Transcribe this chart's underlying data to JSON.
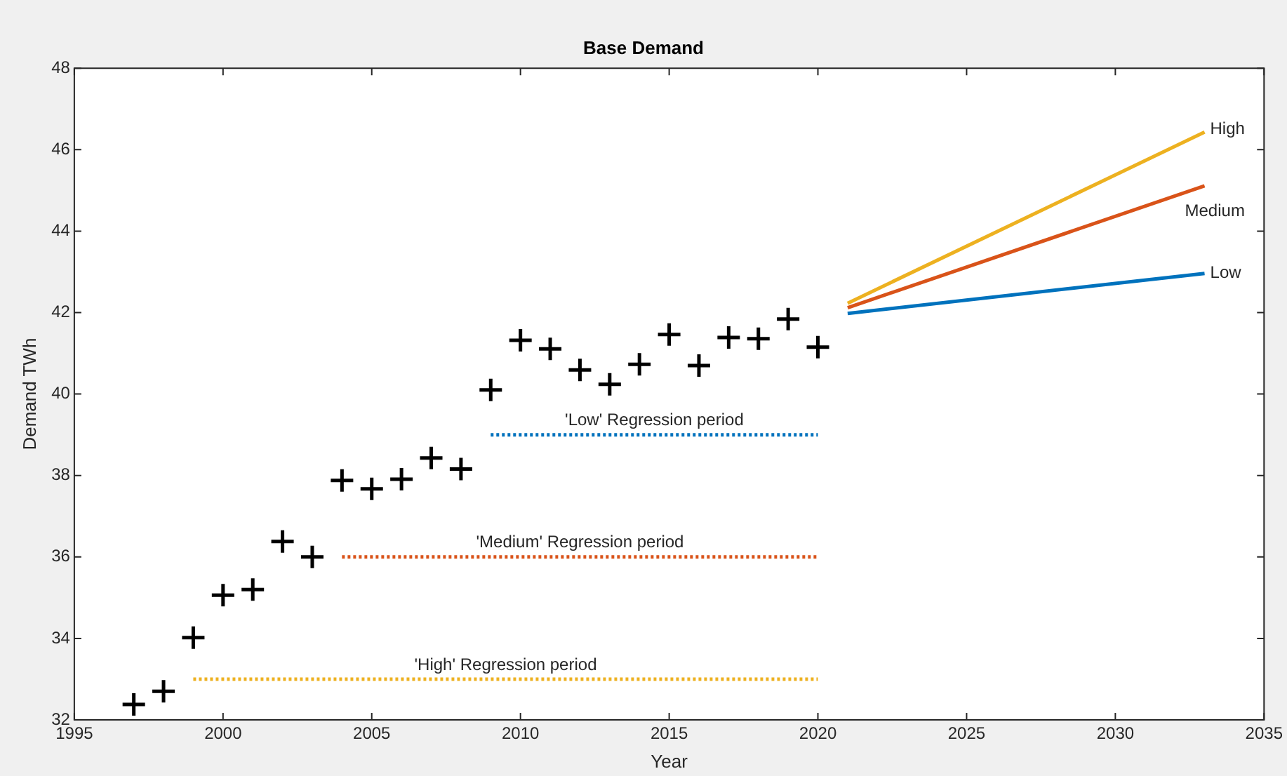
{
  "chart_data": {
    "type": "scatter",
    "title": "Base Demand",
    "xlabel": "Year",
    "ylabel": "Demand TWh",
    "xlim": [
      1995,
      2035
    ],
    "xticks": [
      1995,
      2000,
      2005,
      2010,
      2015,
      2020,
      2025,
      2030,
      2035
    ],
    "ylim": [
      32,
      48
    ],
    "yticks": [
      32,
      34,
      36,
      38,
      40,
      42,
      44,
      46,
      48
    ],
    "grid": false,
    "legend": false,
    "series": [
      {
        "marker": "cross",
        "color": "#000000",
        "x": [
          1997,
          1998,
          1999,
          2000,
          2001,
          2002,
          2003,
          2004,
          2005,
          2006,
          2007,
          2008,
          2009,
          2010,
          2011,
          2012,
          2013,
          2014,
          2015,
          2016,
          2017,
          2018,
          2019,
          2020
        ],
        "values": [
          32.38,
          32.7,
          34.02,
          35.06,
          35.2,
          36.38,
          36.0,
          37.88,
          37.67,
          37.91,
          38.43,
          38.16,
          40.1,
          41.32,
          41.11,
          40.59,
          40.24,
          40.73,
          41.46,
          40.7,
          41.39,
          41.36,
          41.84,
          41.15
        ]
      },
      {
        "type": "line",
        "name": "High",
        "color": "#edb120",
        "x": [
          2021,
          2033
        ],
        "values": [
          42.23,
          46.43
        ]
      },
      {
        "type": "line",
        "name": "Medium",
        "color": "#d95319",
        "x": [
          2021,
          2033
        ],
        "values": [
          42.12,
          45.11
        ]
      },
      {
        "type": "line",
        "name": "Low",
        "color": "#0072bd",
        "x": [
          2021,
          2033
        ],
        "values": [
          41.98,
          42.96
        ]
      },
      {
        "type": "line",
        "line_style": "dotted",
        "color": "#0072bd",
        "x": [
          2009,
          2020
        ],
        "values": [
          39,
          39
        ]
      },
      {
        "type": "line",
        "line_style": "dotted",
        "color": "#d95319",
        "x": [
          2004,
          2020
        ],
        "values": [
          36,
          36
        ]
      },
      {
        "type": "line",
        "line_style": "dotted",
        "color": "#edb120",
        "x": [
          1999,
          2020
        ],
        "values": [
          33,
          33
        ]
      }
    ],
    "annotations": [
      {
        "text": "'Low' Regression period",
        "x": 2014.5,
        "y": 39
      },
      {
        "text": "'Medium' Regression period",
        "x": 2012,
        "y": 36
      },
      {
        "text": "'High' Regression period",
        "x": 2009.5,
        "y": 33
      }
    ]
  }
}
